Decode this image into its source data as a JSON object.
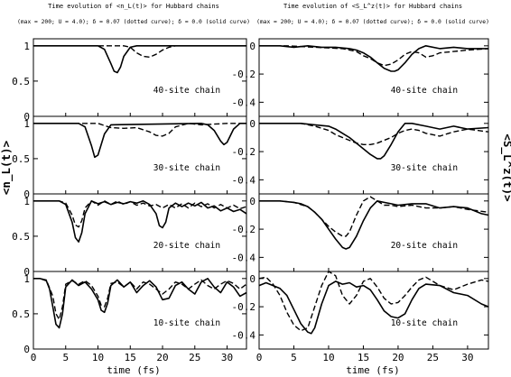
{
  "left": {
    "title": "Time evolution of <n_L(t)> for Hubbard chains",
    "subtitle": "(max = 200; U = 4.0); δ = 0.07 (dotted curve); δ = 0.0 (solid curve)",
    "ylabel": "<n_L(t)>"
  },
  "right": {
    "title": "Time evolution of <S_L^z(t)> for Hubbard chains",
    "subtitle": "(max = 200; U = 4.0); δ = 0.07 (dotted curve); δ = 0.0 (solid curve)",
    "ylabel": "<S_L^z(t)>"
  },
  "xlabel": "time (fs)",
  "colors": {
    "ink": "#000000",
    "background": "#ffffff"
  },
  "chart_data": [
    {
      "type": "line",
      "column": "left",
      "panel": 0,
      "label": "40-site chain",
      "xlim": [
        0,
        33
      ],
      "ylim": [
        0,
        1.1
      ],
      "yticks": [
        "0",
        "0.5",
        "1"
      ],
      "xticks": [],
      "series": [
        {
          "style": "solid",
          "x": [
            0,
            10,
            11,
            12,
            12.5,
            13,
            13.5,
            14,
            15,
            16,
            33
          ],
          "y": [
            1,
            1,
            0.95,
            0.75,
            0.64,
            0.62,
            0.7,
            0.85,
            0.98,
            1,
            1
          ]
        },
        {
          "style": "dashed",
          "x": [
            0,
            14,
            15,
            16,
            17,
            18,
            19,
            20,
            21,
            22,
            33
          ],
          "y": [
            1,
            1,
            0.98,
            0.9,
            0.85,
            0.84,
            0.88,
            0.94,
            0.98,
            1,
            1
          ]
        }
      ]
    },
    {
      "type": "line",
      "column": "left",
      "panel": 1,
      "label": "30-site chain",
      "xlim": [
        0,
        33
      ],
      "ylim": [
        0,
        1.1
      ],
      "yticks": [
        "0",
        "0.5",
        "1"
      ],
      "xticks": [],
      "series": [
        {
          "style": "solid",
          "x": [
            0,
            7,
            8,
            9,
            9.5,
            10,
            11,
            12,
            26,
            27,
            28,
            29,
            29.5,
            30,
            31,
            32,
            33
          ],
          "y": [
            1,
            1,
            0.95,
            0.68,
            0.52,
            0.55,
            0.85,
            0.98,
            1,
            0.98,
            0.9,
            0.75,
            0.7,
            0.73,
            0.92,
            1,
            1
          ]
        },
        {
          "style": "dashed",
          "x": [
            0,
            10,
            11,
            12,
            14,
            16,
            18,
            19,
            20,
            21,
            22,
            24,
            26,
            28,
            30,
            32,
            33
          ],
          "y": [
            1,
            1,
            0.97,
            0.94,
            0.93,
            0.94,
            0.88,
            0.83,
            0.82,
            0.86,
            0.95,
            1,
            0.98,
            0.99,
            1,
            1,
            1
          ]
        }
      ]
    },
    {
      "type": "line",
      "column": "left",
      "panel": 2,
      "label": "20-site chain",
      "xlim": [
        0,
        33
      ],
      "ylim": [
        0,
        1.1
      ],
      "yticks": [
        "0",
        "0.5",
        "1"
      ],
      "xticks": [],
      "series": [
        {
          "style": "solid",
          "x": [
            0,
            4,
            5,
            6,
            6.5,
            7,
            7.5,
            8,
            9,
            10,
            11,
            12,
            13,
            14,
            15,
            16,
            17,
            18,
            19,
            19.5,
            20,
            20.5,
            21,
            22,
            23,
            24,
            25,
            26,
            27,
            28,
            29,
            30,
            31,
            32,
            33
          ],
          "y": [
            1,
            1,
            0.95,
            0.7,
            0.48,
            0.42,
            0.55,
            0.82,
            1,
            0.96,
            0.99,
            0.95,
            0.98,
            0.96,
            0.99,
            0.97,
            1,
            0.95,
            0.82,
            0.65,
            0.62,
            0.7,
            0.9,
            0.97,
            0.92,
            0.97,
            0.93,
            0.98,
            0.9,
            0.93,
            0.86,
            0.9,
            0.85,
            0.88,
            0.82
          ]
        },
        {
          "style": "dashed",
          "x": [
            0,
            4,
            5,
            6,
            6.5,
            7,
            7.5,
            8,
            9,
            10,
            11,
            12,
            13,
            14,
            15,
            16,
            17,
            18,
            19,
            20,
            21,
            22,
            23,
            24,
            25,
            26,
            27,
            28,
            29,
            30,
            31,
            32,
            33
          ],
          "y": [
            1,
            1,
            0.97,
            0.8,
            0.66,
            0.63,
            0.72,
            0.9,
            1,
            0.94,
            1,
            0.95,
            1,
            0.95,
            0.99,
            0.94,
            0.97,
            0.93,
            0.95,
            0.9,
            0.95,
            0.9,
            0.96,
            0.9,
            0.97,
            0.92,
            0.96,
            0.9,
            0.95,
            0.9,
            0.94,
            0.89,
            0.92
          ]
        }
      ]
    },
    {
      "type": "line",
      "column": "left",
      "panel": 3,
      "label": "10-site chain",
      "xlim": [
        0,
        33
      ],
      "ylim": [
        0,
        1.1
      ],
      "yticks": [
        "0",
        "0.5",
        "1"
      ],
      "xticks": [
        "0",
        "5",
        "10",
        "15",
        "20",
        "25",
        "30"
      ],
      "series": [
        {
          "style": "solid",
          "x": [
            0,
            1,
            2,
            2.5,
            3,
            3.5,
            4,
            4.5,
            5,
            6,
            7,
            8,
            9,
            10,
            10.5,
            11,
            11.5,
            12,
            13,
            14,
            15,
            16,
            17,
            18,
            19,
            20,
            21,
            22,
            23,
            24,
            25,
            26,
            27,
            28,
            29,
            30,
            31,
            32,
            33
          ],
          "y": [
            1,
            1,
            0.97,
            0.85,
            0.6,
            0.35,
            0.3,
            0.5,
            0.88,
            0.98,
            0.9,
            0.95,
            0.85,
            0.7,
            0.55,
            0.52,
            0.65,
            0.9,
            0.98,
            0.88,
            0.95,
            0.8,
            0.9,
            0.97,
            0.88,
            0.7,
            0.72,
            0.9,
            0.95,
            0.85,
            0.78,
            0.95,
            1,
            0.88,
            0.8,
            0.95,
            0.88,
            0.75,
            0.8
          ]
        },
        {
          "style": "dashed",
          "x": [
            0,
            1,
            2,
            3,
            3.5,
            4,
            4.5,
            5,
            6,
            7,
            8,
            9,
            10,
            10.5,
            11,
            11.5,
            12,
            13,
            14,
            15,
            16,
            17,
            18,
            19,
            20,
            21,
            22,
            23,
            24,
            25,
            26,
            27,
            28,
            29,
            30,
            31,
            32,
            33
          ],
          "y": [
            1,
            1,
            0.98,
            0.75,
            0.5,
            0.42,
            0.6,
            0.92,
            0.97,
            0.92,
            0.97,
            0.9,
            0.75,
            0.62,
            0.6,
            0.72,
            0.93,
            0.95,
            0.88,
            0.95,
            0.85,
            0.95,
            0.92,
            0.85,
            0.78,
            0.85,
            0.95,
            0.92,
            0.85,
            0.92,
            0.98,
            0.9,
            0.85,
            0.92,
            0.97,
            0.93,
            0.85,
            0.92
          ]
        }
      ]
    },
    {
      "type": "line",
      "column": "right",
      "panel": 0,
      "label": "40-site chain",
      "xlim": [
        0,
        33
      ],
      "ylim": [
        -0.5,
        0.05
      ],
      "yticks": [
        "0",
        "-0.2",
        "-0.4"
      ],
      "xticks": [],
      "series": [
        {
          "style": "solid",
          "x": [
            0,
            3,
            5,
            7,
            9,
            11,
            13,
            14,
            15,
            16,
            17,
            18,
            19,
            19.5,
            20,
            21,
            22,
            23,
            24,
            26,
            28,
            30,
            33
          ],
          "y": [
            0,
            0,
            -0.01,
            0,
            -0.01,
            -0.01,
            -0.02,
            -0.03,
            -0.05,
            -0.08,
            -0.12,
            -0.16,
            -0.18,
            -0.18,
            -0.17,
            -0.12,
            -0.06,
            -0.02,
            0,
            -0.02,
            -0.01,
            -0.02,
            -0.02
          ]
        },
        {
          "style": "dashed",
          "x": [
            0,
            4,
            8,
            12,
            14,
            15,
            16,
            17,
            18,
            19,
            20,
            21,
            22,
            23,
            24,
            25,
            26,
            28,
            30,
            33
          ],
          "y": [
            0,
            0,
            -0.01,
            -0.02,
            -0.04,
            -0.07,
            -0.09,
            -0.12,
            -0.14,
            -0.13,
            -0.1,
            -0.06,
            -0.04,
            -0.05,
            -0.08,
            -0.07,
            -0.05,
            -0.04,
            -0.03,
            -0.02
          ]
        }
      ]
    },
    {
      "type": "line",
      "column": "right",
      "panel": 1,
      "label": "30-site chain",
      "xlim": [
        0,
        33
      ],
      "ylim": [
        -0.5,
        0.05
      ],
      "yticks": [
        "0",
        "-0.2",
        "-0.4"
      ],
      "xticks": [],
      "series": [
        {
          "style": "solid",
          "x": [
            0,
            6,
            8,
            10,
            11,
            12,
            13,
            14,
            15,
            16,
            17,
            17.5,
            18,
            19,
            20,
            21,
            22,
            24,
            26,
            28,
            30,
            33
          ],
          "y": [
            0,
            0,
            -0.01,
            -0.02,
            -0.04,
            -0.07,
            -0.1,
            -0.14,
            -0.18,
            -0.22,
            -0.25,
            -0.25,
            -0.23,
            -0.15,
            -0.06,
            0,
            0,
            -0.02,
            -0.04,
            -0.02,
            -0.04,
            -0.03
          ]
        },
        {
          "style": "dashed",
          "x": [
            0,
            6,
            8,
            10,
            11,
            12,
            13,
            14,
            15,
            16,
            17,
            18,
            19,
            20,
            21,
            22,
            23,
            24,
            26,
            28,
            30,
            33
          ],
          "y": [
            0,
            0,
            -0.02,
            -0.05,
            -0.08,
            -0.1,
            -0.12,
            -0.14,
            -0.15,
            -0.15,
            -0.14,
            -0.12,
            -0.1,
            -0.07,
            -0.05,
            -0.04,
            -0.05,
            -0.07,
            -0.09,
            -0.06,
            -0.04,
            -0.06
          ]
        }
      ]
    },
    {
      "type": "line",
      "column": "right",
      "panel": 2,
      "label": "20-site chain",
      "xlim": [
        0,
        33
      ],
      "ylim": [
        -0.5,
        0.05
      ],
      "yticks": [
        "0",
        "-0.2",
        "-0.4"
      ],
      "xticks": [],
      "series": [
        {
          "style": "solid",
          "x": [
            0,
            3,
            5,
            6,
            7,
            8,
            9,
            10,
            11,
            12,
            12.5,
            13,
            14,
            15,
            16,
            17,
            18,
            19,
            20,
            22,
            24,
            26,
            28,
            30,
            31,
            32,
            33
          ],
          "y": [
            0,
            0,
            -0.01,
            -0.02,
            -0.04,
            -0.08,
            -0.13,
            -0.2,
            -0.27,
            -0.33,
            -0.34,
            -0.33,
            -0.25,
            -0.14,
            -0.05,
            0,
            -0.01,
            -0.02,
            -0.03,
            -0.02,
            -0.02,
            -0.05,
            -0.04,
            -0.05,
            -0.07,
            -0.09,
            -0.1
          ]
        },
        {
          "style": "dashed",
          "x": [
            0,
            3,
            5,
            7,
            8,
            9,
            10,
            11,
            12,
            12.5,
            13,
            14,
            15,
            16,
            17,
            18,
            19,
            20,
            22,
            24,
            26,
            28,
            30,
            33
          ],
          "y": [
            0,
            0,
            -0.01,
            -0.04,
            -0.08,
            -0.13,
            -0.18,
            -0.22,
            -0.25,
            -0.25,
            -0.22,
            -0.1,
            0,
            0.03,
            0,
            -0.03,
            -0.03,
            -0.04,
            -0.03,
            -0.05,
            -0.05,
            -0.04,
            -0.06,
            -0.08
          ]
        }
      ]
    },
    {
      "type": "line",
      "column": "right",
      "panel": 3,
      "label": "10-site chain",
      "xlim": [
        0,
        33
      ],
      "ylim": [
        -0.5,
        0.05
      ],
      "yticks": [
        "0",
        "-0.2",
        "-0.4"
      ],
      "xticks": [
        "0",
        "5",
        "10",
        "15",
        "20",
        "25",
        "30"
      ],
      "series": [
        {
          "style": "solid",
          "x": [
            0,
            1,
            2,
            3,
            4,
            5,
            6,
            7,
            7.5,
            8,
            9,
            10,
            11,
            12,
            13,
            14,
            15,
            16,
            17,
            18,
            19,
            20,
            21,
            22,
            23,
            24,
            26,
            28,
            30,
            32,
            33
          ],
          "y": [
            -0.05,
            -0.03,
            -0.05,
            -0.07,
            -0.12,
            -0.22,
            -0.32,
            -0.38,
            -0.39,
            -0.35,
            -0.18,
            -0.05,
            -0.02,
            -0.04,
            -0.03,
            -0.06,
            -0.05,
            -0.08,
            -0.15,
            -0.23,
            -0.27,
            -0.28,
            -0.25,
            -0.15,
            -0.07,
            -0.04,
            -0.05,
            -0.1,
            -0.12,
            -0.18,
            -0.2
          ]
        },
        {
          "style": "dashed",
          "x": [
            0,
            1,
            2,
            3,
            4,
            5,
            6,
            7,
            8,
            9,
            10,
            11,
            12,
            13,
            14,
            15,
            16,
            17,
            18,
            19,
            20,
            21,
            22,
            23,
            24,
            25,
            26,
            28,
            30,
            32,
            33
          ],
          "y": [
            0,
            0.01,
            -0.04,
            -0.12,
            -0.24,
            -0.33,
            -0.37,
            -0.35,
            -0.2,
            -0.05,
            0.05,
            0.02,
            -0.12,
            -0.18,
            -0.12,
            -0.02,
            0,
            -0.06,
            -0.14,
            -0.18,
            -0.17,
            -0.12,
            -0.06,
            -0.01,
            0.01,
            -0.02,
            -0.05,
            -0.08,
            -0.04,
            -0.01,
            -0.02
          ]
        }
      ]
    }
  ]
}
